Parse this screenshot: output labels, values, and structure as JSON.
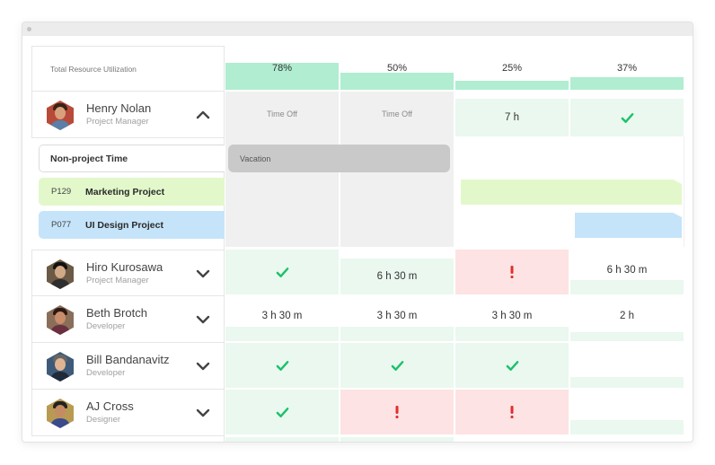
{
  "header": {
    "title": "Total Resource Utilization"
  },
  "utilization": [
    {
      "label": "78%",
      "value": 0.78
    },
    {
      "label": "50%",
      "value": 0.5
    },
    {
      "label": "25%",
      "value": 0.25
    },
    {
      "label": "37%",
      "value": 0.37
    }
  ],
  "people": [
    {
      "name": "Henry Nolan",
      "role": "Project Manager",
      "expanded": true,
      "cells": [
        {
          "type": "gray",
          "text": "Time Off"
        },
        {
          "type": "gray",
          "text": "Time Off"
        },
        {
          "type": "g",
          "text": "7 h"
        },
        {
          "type": "g",
          "icon": "check-icon"
        }
      ]
    },
    {
      "name": "Hiro Kurosawa",
      "role": "Project Manager",
      "expanded": false,
      "cells": [
        {
          "type": "g",
          "icon": "check-icon"
        },
        {
          "type": "g",
          "text": "6 h 30 m"
        },
        {
          "type": "r",
          "icon": "exclamation-icon"
        },
        {
          "type": "w",
          "text": "6 h 30 m"
        }
      ]
    },
    {
      "name": "Beth Brotch",
      "role": "Developer",
      "expanded": false,
      "cells": [
        {
          "type": "w",
          "text": "3 h 30 m"
        },
        {
          "type": "w",
          "text": "3 h 30 m"
        },
        {
          "type": "w",
          "text": "3 h 30 m"
        },
        {
          "type": "w",
          "text": "2 h"
        }
      ]
    },
    {
      "name": "Bill Bandanavitz",
      "role": "Developer",
      "expanded": false,
      "cells": [
        {
          "type": "g",
          "icon": "check-icon"
        },
        {
          "type": "g",
          "icon": "check-icon"
        },
        {
          "type": "g",
          "icon": "check-icon"
        },
        {
          "type": "w",
          "text": ""
        }
      ]
    },
    {
      "name": "AJ Cross",
      "role": "Designer",
      "expanded": false,
      "cells": [
        {
          "type": "g",
          "icon": "check-icon"
        },
        {
          "type": "r",
          "icon": "exclamation-icon"
        },
        {
          "type": "r",
          "icon": "exclamation-icon"
        },
        {
          "type": "w",
          "text": ""
        }
      ]
    }
  ],
  "subrows": {
    "non_project": "Non-project Time",
    "vacation": "Vacation",
    "projects": [
      {
        "code": "P129",
        "name": "Marketing Project"
      },
      {
        "code": "P077",
        "name": "UI Design Project"
      }
    ]
  },
  "colors": {
    "utilization_bar": "#b0edd1",
    "ok_cell": "#eaf8ef",
    "over_cell": "#fde3e3",
    "check": "#1cc26a",
    "alert": "#e02e2e",
    "marketing": "#e2f8cb",
    "ui_design": "#c5e4fa"
  }
}
